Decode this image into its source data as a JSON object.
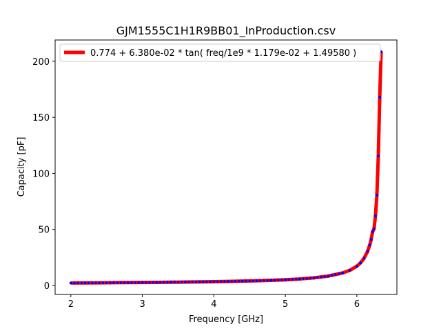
{
  "chart_data": {
    "type": "line",
    "title": "GJM1555C1H1R9BB01_InProduction.csv",
    "xlabel": "Frequency [GHz]",
    "ylabel": "Capacity [pF]",
    "xlim": [
      1.78,
      6.56
    ],
    "ylim": [
      -8,
      219
    ],
    "xticks": [
      2,
      3,
      4,
      5,
      6
    ],
    "yticks": [
      0,
      50,
      100,
      150,
      200
    ],
    "legend_location": "upper left",
    "grid": false,
    "fit": {
      "label": "0.774 + 6.380e-02 * tan( freq/1e9 * 1.179e-02 + 1.49580 )",
      "color": "#ff0000",
      "a": 0.774,
      "b": 0.0638,
      "c": 0.01179,
      "d": 1.4958,
      "x_range_ghz": [
        2.0,
        6.34
      ]
    },
    "measured": {
      "color": "#0000ff",
      "x": [
        2.0,
        2.2,
        2.4,
        2.6,
        2.8,
        3.0,
        3.2,
        3.4,
        3.6,
        3.8,
        4.0,
        4.2,
        4.4,
        4.6,
        4.8,
        5.0,
        5.2,
        5.4,
        5.6,
        5.8,
        5.9,
        6.0,
        6.05,
        6.1,
        6.15,
        6.18,
        6.2,
        6.22,
        6.24,
        6.26,
        6.28,
        6.3,
        6.32,
        6.34
      ],
      "y": [
        2.2,
        2.3,
        2.4,
        2.5,
        2.6,
        2.7,
        2.8,
        2.9,
        3.1,
        3.2,
        3.4,
        3.6,
        3.9,
        4.2,
        4.6,
        5.1,
        5.8,
        6.8,
        8.4,
        11.2,
        13.5,
        17.2,
        20.1,
        24.2,
        30.4,
        36.0,
        41.0,
        48.0,
        50.5,
        62.0,
        80.5,
        115.5,
        168.0,
        208.5
      ]
    }
  }
}
